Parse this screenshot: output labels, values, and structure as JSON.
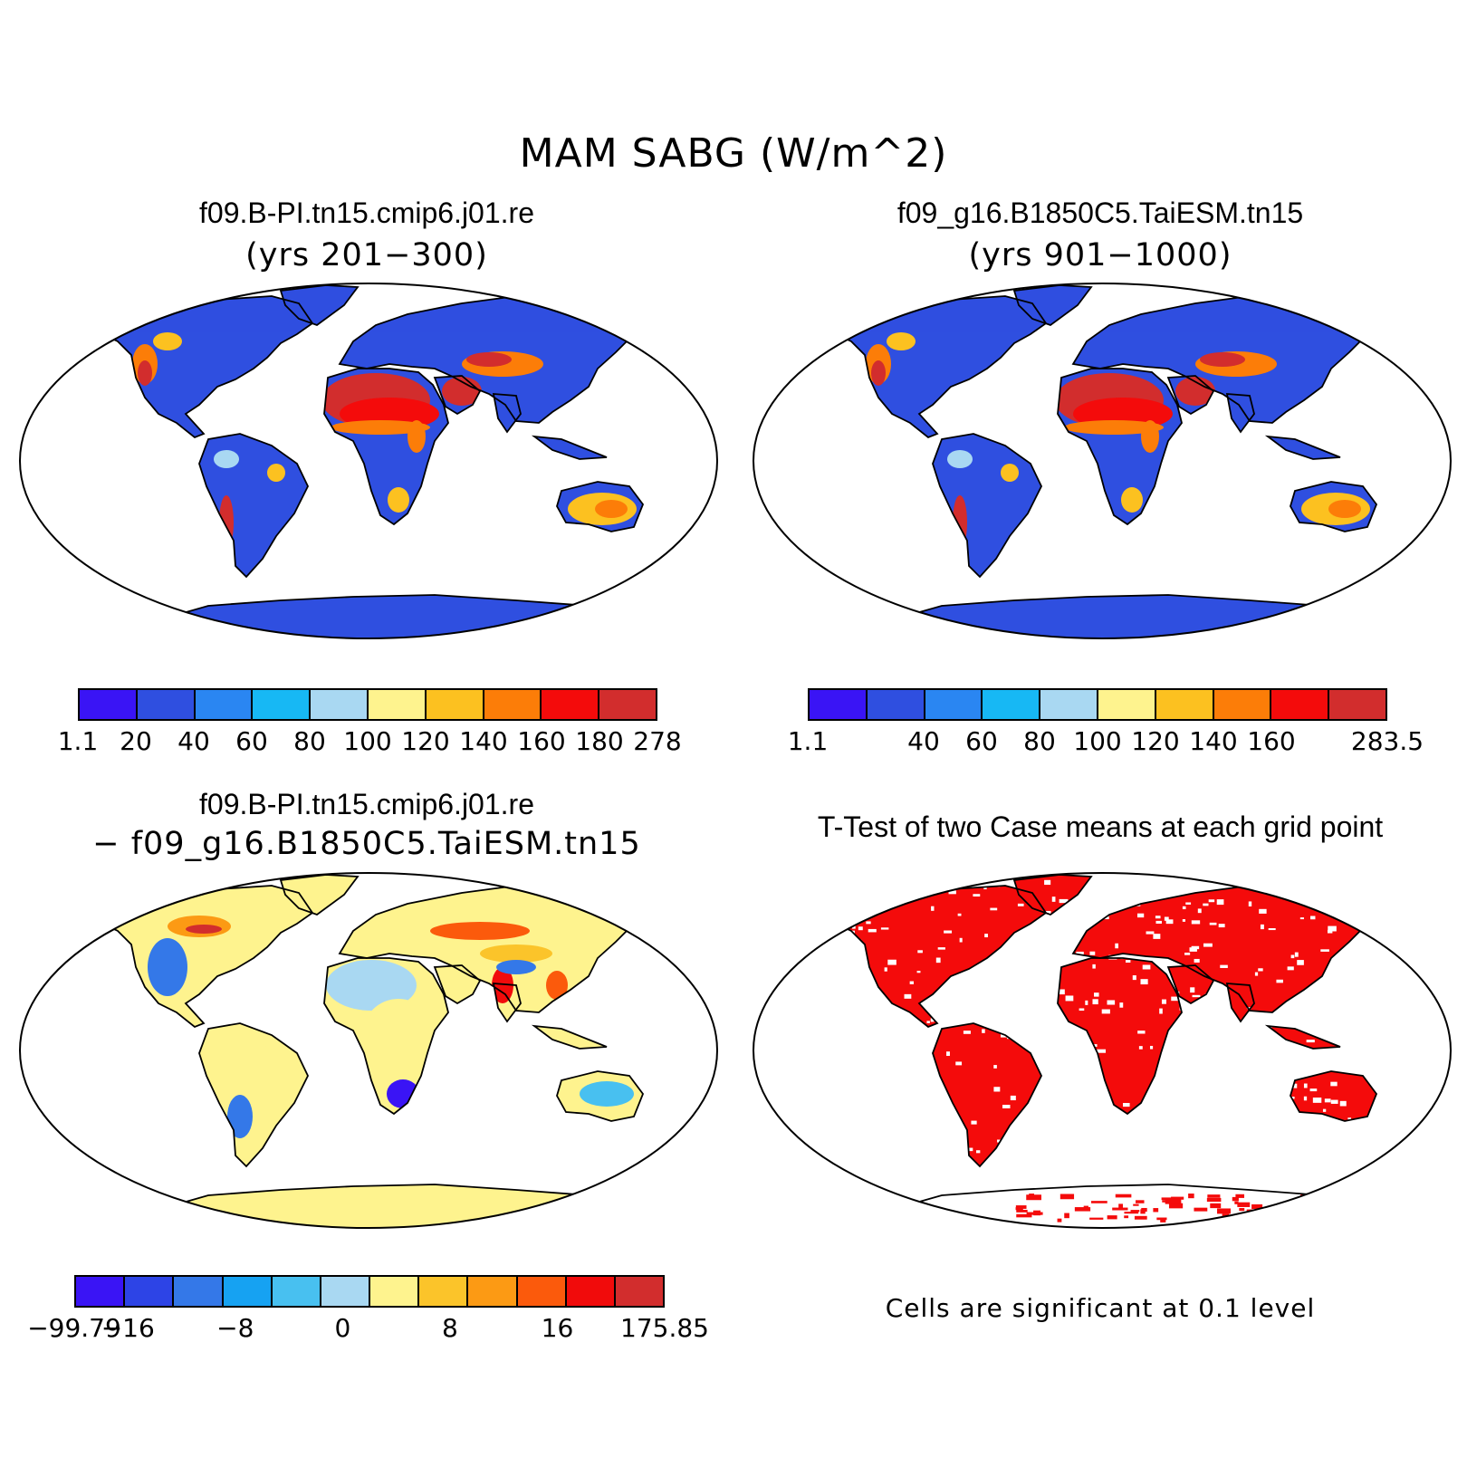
{
  "title": "MAM SABG (W/m^2)",
  "panels": [
    {
      "id": "case1",
      "title": "f09.B-PI.tn15.cmip6.j01.re",
      "subtitle": "(yrs 201−300)",
      "colorbar": {
        "colors": [
          "#3a14f5",
          "#2f4fe0",
          "#2a86f2",
          "#17b8f4",
          "#a9d8f2",
          "#fef38e",
          "#fcc120",
          "#fc7d08",
          "#f40b0b",
          "#d22d2d"
        ],
        "labels": [
          "1.1",
          "20",
          "40",
          "60",
          "80",
          "100",
          "120",
          "140",
          "160",
          "180",
          "278"
        ]
      }
    },
    {
      "id": "case2",
      "title": "f09_g16.B1850C5.TaiESM.tn15",
      "subtitle": "(yrs 901−1000)",
      "colorbar": {
        "colors": [
          "#3a14f5",
          "#2f4fe0",
          "#2a86f2",
          "#17b8f4",
          "#a9d8f2",
          "#fef38e",
          "#fcc120",
          "#fc7d08",
          "#f40b0b",
          "#d22d2d"
        ],
        "labels": [
          "1.1",
          "",
          "40",
          "60",
          "80",
          "100",
          "120",
          "140",
          "160",
          "",
          "283.5"
        ]
      }
    },
    {
      "id": "diff",
      "title": "f09.B-PI.tn15.cmip6.j01.re",
      "subtitle": "− f09_g16.B1850C5.TaiESM.tn15",
      "colorbar": {
        "colors": [
          "#3a14f5",
          "#2d44e6",
          "#3478e8",
          "#16a2f2",
          "#48c0f0",
          "#a9d8f2",
          "#fef38e",
          "#fbc42a",
          "#fc9a14",
          "#fb5a0c",
          "#f10b0b",
          "#d22d2d"
        ],
        "labels": [
          "−99.79",
          "−16",
          "",
          "−8",
          "",
          "0",
          "",
          "8",
          "",
          "16",
          "",
          "175.85"
        ]
      }
    },
    {
      "id": "ttest",
      "title": "T-Test of two Case means at each grid point",
      "note": "Cells are significant at 0.1 level"
    }
  ]
}
